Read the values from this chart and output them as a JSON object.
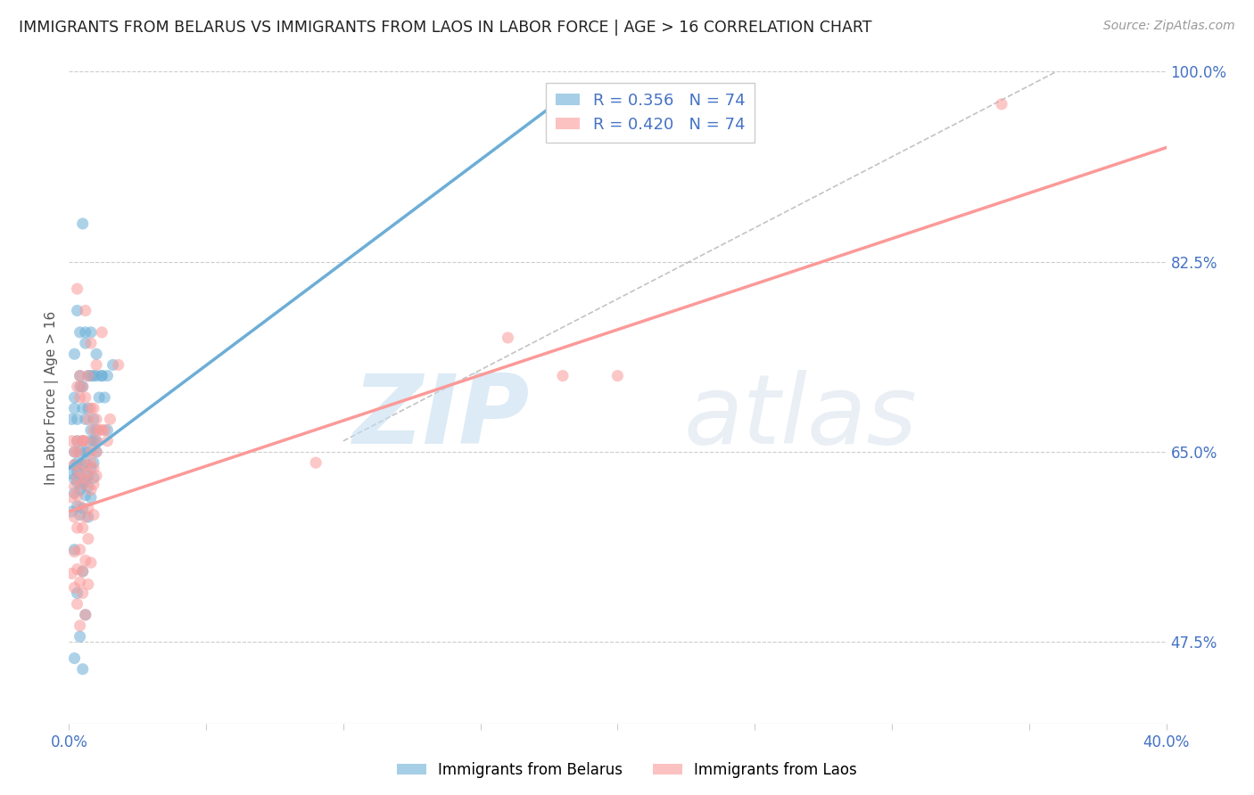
{
  "title": "IMMIGRANTS FROM BELARUS VS IMMIGRANTS FROM LAOS IN LABOR FORCE | AGE > 16 CORRELATION CHART",
  "source": "Source: ZipAtlas.com",
  "ylabel": "In Labor Force | Age > 16",
  "xlim": [
    0.0,
    0.4
  ],
  "ylim": [
    0.4,
    1.0
  ],
  "belarus_color": "#6baed6",
  "laos_color": "#fb9a99",
  "belarus_R": 0.356,
  "belarus_N": 74,
  "laos_R": 0.42,
  "laos_N": 74,
  "belarus_line": [
    [
      0.0,
      0.185
    ],
    [
      0.635,
      0.985
    ]
  ],
  "laos_line": [
    [
      0.0,
      0.4
    ],
    [
      0.595,
      0.93
    ]
  ],
  "diag_line": [
    [
      0.1,
      0.36
    ],
    [
      0.66,
      1.0
    ]
  ],
  "belarus_scatter_x": [
    0.005,
    0.003,
    0.004,
    0.006,
    0.008,
    0.01,
    0.007,
    0.005,
    0.004,
    0.009,
    0.012,
    0.014,
    0.016,
    0.002,
    0.006,
    0.008,
    0.01,
    0.012,
    0.004,
    0.002,
    0.007,
    0.009,
    0.011,
    0.013,
    0.002,
    0.005,
    0.003,
    0.001,
    0.006,
    0.008,
    0.01,
    0.014,
    0.003,
    0.005,
    0.008,
    0.01,
    0.002,
    0.006,
    0.009,
    0.004,
    0.007,
    0.01,
    0.003,
    0.006,
    0.009,
    0.002,
    0.005,
    0.008,
    0.003,
    0.001,
    0.004,
    0.007,
    0.009,
    0.002,
    0.006,
    0.003,
    0.005,
    0.007,
    0.004,
    0.002,
    0.006,
    0.008,
    0.003,
    0.005,
    0.001,
    0.004,
    0.007,
    0.002,
    0.005,
    0.003,
    0.006,
    0.004,
    0.002,
    0.005
  ],
  "belarus_scatter_y": [
    0.86,
    0.78,
    0.76,
    0.76,
    0.76,
    0.74,
    0.72,
    0.71,
    0.72,
    0.72,
    0.72,
    0.72,
    0.73,
    0.74,
    0.75,
    0.72,
    0.72,
    0.72,
    0.71,
    0.7,
    0.69,
    0.68,
    0.7,
    0.7,
    0.69,
    0.69,
    0.68,
    0.68,
    0.68,
    0.67,
    0.67,
    0.67,
    0.66,
    0.66,
    0.66,
    0.66,
    0.65,
    0.65,
    0.66,
    0.65,
    0.65,
    0.65,
    0.64,
    0.64,
    0.64,
    0.638,
    0.638,
    0.635,
    0.632,
    0.63,
    0.63,
    0.628,
    0.626,
    0.625,
    0.624,
    0.622,
    0.62,
    0.618,
    0.615,
    0.612,
    0.61,
    0.608,
    0.6,
    0.598,
    0.595,
    0.592,
    0.59,
    0.56,
    0.54,
    0.52,
    0.5,
    0.48,
    0.46,
    0.45
  ],
  "laos_scatter_x": [
    0.006,
    0.003,
    0.008,
    0.01,
    0.012,
    0.007,
    0.005,
    0.004,
    0.009,
    0.015,
    0.018,
    0.003,
    0.006,
    0.008,
    0.01,
    0.012,
    0.004,
    0.002,
    0.007,
    0.009,
    0.011,
    0.013,
    0.005,
    0.003,
    0.001,
    0.006,
    0.008,
    0.01,
    0.014,
    0.003,
    0.005,
    0.008,
    0.01,
    0.002,
    0.006,
    0.009,
    0.004,
    0.007,
    0.01,
    0.003,
    0.006,
    0.009,
    0.002,
    0.005,
    0.008,
    0.003,
    0.001,
    0.004,
    0.007,
    0.009,
    0.002,
    0.006,
    0.003,
    0.005,
    0.007,
    0.004,
    0.002,
    0.006,
    0.008,
    0.003,
    0.005,
    0.001,
    0.004,
    0.007,
    0.002,
    0.005,
    0.003,
    0.006,
    0.004,
    0.16,
    0.18,
    0.2,
    0.34,
    0.09
  ],
  "laos_scatter_y": [
    0.78,
    0.8,
    0.75,
    0.73,
    0.76,
    0.72,
    0.71,
    0.72,
    0.69,
    0.68,
    0.73,
    0.71,
    0.7,
    0.69,
    0.68,
    0.67,
    0.7,
    0.65,
    0.68,
    0.67,
    0.67,
    0.67,
    0.66,
    0.66,
    0.66,
    0.66,
    0.65,
    0.66,
    0.66,
    0.65,
    0.66,
    0.64,
    0.65,
    0.638,
    0.638,
    0.635,
    0.632,
    0.63,
    0.628,
    0.626,
    0.625,
    0.62,
    0.618,
    0.62,
    0.615,
    0.61,
    0.608,
    0.6,
    0.598,
    0.592,
    0.59,
    0.59,
    0.58,
    0.58,
    0.57,
    0.56,
    0.558,
    0.55,
    0.548,
    0.542,
    0.54,
    0.538,
    0.53,
    0.528,
    0.525,
    0.52,
    0.51,
    0.5,
    0.49,
    0.755,
    0.72,
    0.72,
    0.97,
    0.64
  ]
}
